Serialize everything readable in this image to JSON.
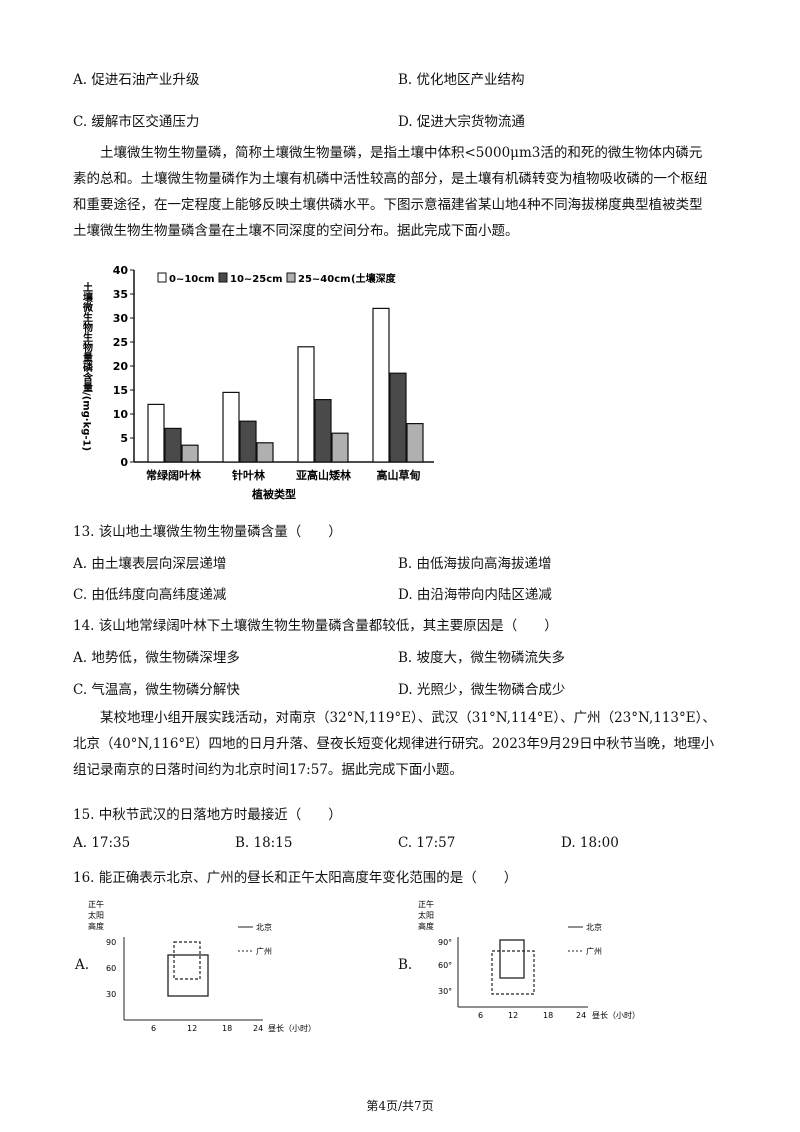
{
  "q12_options": {
    "a": "A. 促进石油产业升级",
    "b": "B. 优化地区产业结构",
    "c": "C. 缓解市区交通压力",
    "d": "D. 促进大宗货物流通"
  },
  "passage1": "土壤微生物生物量磷，简称土壤微生物量磷，是指土壤中体积<5000μm3活的和死的微生物体内磷元素的总和。土壤微生物量磷作为土壤有机磷中活性较高的部分，是土壤有机磷转变为植物吸收磷的一个枢纽和重要途径，在一定程度上能够反映土壤供磷水平。下图示意福建省某山地4种不同海拔梯度典型植被类型土壤微生物生物量磷含量在土壤不同深度的空间分布。据此完成下面小题。",
  "chart_data": {
    "type": "bar",
    "ylabel": "土壤微生物生物量磷含量/(mg·kg-1)",
    "xlabel": "植被类型",
    "ylim": [
      0,
      40
    ],
    "yticks": [
      "0",
      "5",
      "10",
      "15",
      "20",
      "25",
      "30",
      "35",
      "40"
    ],
    "legend_suffix": "(土壤深度",
    "categories": [
      "常绿阔叶林",
      "针叶林",
      "亚高山矮林",
      "高山草甸"
    ],
    "series": [
      {
        "name": "0~10cm",
        "values": [
          12,
          14.5,
          24,
          32
        ],
        "color": "#ffffff"
      },
      {
        "name": "10~25cm",
        "values": [
          7,
          8.5,
          13,
          18.5
        ],
        "color": "#4a4a4a"
      },
      {
        "name": "25~40cm",
        "values": [
          3.5,
          4,
          6,
          8
        ],
        "color": "#b0b0b0"
      }
    ]
  },
  "q13": {
    "stem": "13. 该山地土壤微生物生物量磷含量（　　）",
    "a": "A. 由土壤表层向深层递增",
    "b": "B. 由低海拔向高海拔递增",
    "c": "C. 由低纬度向高纬度递减",
    "d": "D. 由沿海带向内陆区递减"
  },
  "q14": {
    "stem": "14. 该山地常绿阔叶林下土壤微生物生物量磷含量都较低，其主要原因是（　　）",
    "a": "A. 地势低，微生物磷深埋多",
    "b": "B. 坡度大，微生物磷流失多",
    "c": "C. 气温高，微生物磷分解快",
    "d": "D. 光照少，微生物磷合成少"
  },
  "passage2": "某校地理小组开展实践活动，对南京（32°N,119°E）、武汉（31°N,114°E）、广州（23°N,113°E）、北京（40°N,116°E）四地的日月升落、昼夜长短变化规律进行研究。2023年9月29日中秋节当晚，地理小组记录南京的日落时间约为北京时间17:57。据此完成下面小题。",
  "q15": {
    "stem": "15. 中秋节武汉的日落地方时最接近（　　）",
    "a": "A. 17:35",
    "b": "B. 18:15",
    "c": "C. 17:57",
    "d": "D. 18:00"
  },
  "q16": {
    "stem": "16. 能正确表示北京、广州的昼长和正午太阳高度年变化范围的是（　　）",
    "fig_a": {
      "letter": "A.",
      "ylabel_lines": [
        "正午",
        "太阳",
        "高度"
      ],
      "yticks": [
        "90",
        "60",
        "30"
      ],
      "xticks": [
        "6",
        "12",
        "18",
        "24"
      ],
      "xlabel": "昼长（小时）",
      "legend": [
        "北京",
        "广州"
      ]
    },
    "fig_b": {
      "letter": "B.",
      "ylabel_lines": [
        "正午",
        "太阳",
        "高度"
      ],
      "yticks": [
        "90°",
        "60°",
        "30°"
      ],
      "xticks": [
        "6",
        "12",
        "18",
        "24"
      ],
      "xlabel": "昼长（小时）",
      "legend": [
        "北京",
        "广州"
      ]
    }
  },
  "footer": "第4页/共7页"
}
